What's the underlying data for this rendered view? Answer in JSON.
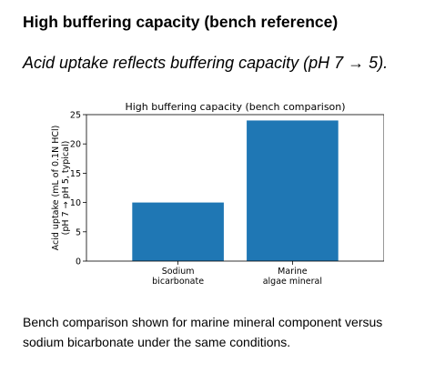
{
  "page": {
    "heading": "High buffering capacity (bench reference)",
    "subheading": "Acid uptake reflects buffering capacity (pH 7 → 5).",
    "caption": "Bench comparison shown for marine mineral component versus sodium bicarbonate under the same conditions."
  },
  "chart_data": {
    "type": "bar",
    "title": "High buffering capacity (bench comparison)",
    "xlabel": "",
    "ylabel": [
      "Acid uptake (mL of 0.1N HCl)",
      "(pH 7 → pH 5, typical)"
    ],
    "categories": [
      [
        "Sodium",
        "bicarbonate"
      ],
      [
        "Marine",
        "algae mineral"
      ]
    ],
    "values": [
      10,
      24
    ],
    "ylim": [
      0,
      25
    ],
    "yticks": [
      0,
      5,
      10,
      15,
      20,
      25
    ],
    "bar_color": "#1f77b4",
    "grid": false,
    "legend": "none"
  }
}
